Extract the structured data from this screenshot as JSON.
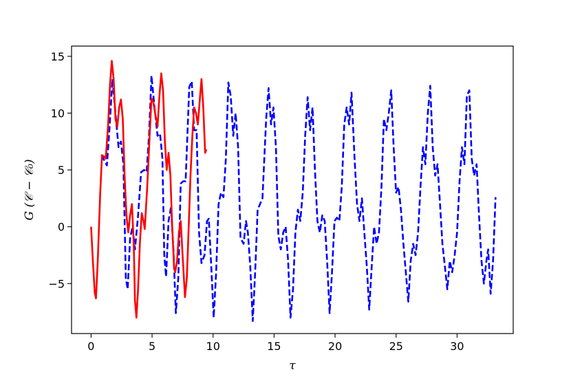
{
  "chart_data": {
    "type": "line",
    "title": "",
    "xlabel": "τ",
    "ylabel": "G (𝒞 − 𝒞₀)",
    "xlim": [
      -1.6,
      34.6
    ],
    "ylim": [
      -9.4,
      15.9
    ],
    "x_ticks": [
      0,
      5,
      10,
      15,
      20,
      25,
      30
    ],
    "x_tick_labels": [
      "0",
      "5",
      "10",
      "15",
      "20",
      "25",
      "30"
    ],
    "y_ticks": [
      -5,
      0,
      5,
      10,
      15
    ],
    "y_tick_labels": [
      "−5",
      "0",
      "5",
      "10",
      "15"
    ],
    "grid": false,
    "legend": "none",
    "series": [
      {
        "color": "#0000ff",
        "style": "dashed",
        "points": [
          [
            0.85,
            6.3
          ],
          [
            1.1,
            5.8
          ],
          [
            1.3,
            5.4
          ],
          [
            1.5,
            8.5
          ],
          [
            1.75,
            13.0
          ],
          [
            2.0,
            10.0
          ],
          [
            2.25,
            7.0
          ],
          [
            2.45,
            7.5
          ],
          [
            2.65,
            5.5
          ],
          [
            2.85,
            -4.5
          ],
          [
            3.0,
            -5.5
          ],
          [
            3.2,
            -1.0
          ],
          [
            3.4,
            0.0
          ],
          [
            3.6,
            -2.0
          ],
          [
            3.85,
            1.0
          ],
          [
            4.1,
            4.8
          ],
          [
            4.35,
            5.0
          ],
          [
            4.55,
            4.8
          ],
          [
            4.75,
            8.0
          ],
          [
            4.95,
            13.3
          ],
          [
            5.2,
            10.5
          ],
          [
            5.45,
            8.0
          ],
          [
            5.65,
            8.2
          ],
          [
            5.85,
            6.0
          ],
          [
            6.0,
            -2.5
          ],
          [
            6.15,
            -4.4
          ],
          [
            6.35,
            0.5
          ],
          [
            6.55,
            1.7
          ],
          [
            6.75,
            -2.0
          ],
          [
            6.95,
            -7.6
          ],
          [
            7.15,
            -4.5
          ],
          [
            7.35,
            3.8
          ],
          [
            7.55,
            4.0
          ],
          [
            7.75,
            4.0
          ],
          [
            8.05,
            12.3
          ],
          [
            8.25,
            12.8
          ],
          [
            8.45,
            8.5
          ],
          [
            8.65,
            8.5
          ],
          [
            8.85,
            -0.5
          ],
          [
            9.05,
            -3.2
          ],
          [
            9.3,
            -2.5
          ],
          [
            9.5,
            0.5
          ],
          [
            9.65,
            0.7
          ],
          [
            9.85,
            -3.5
          ],
          [
            10.05,
            -8.0
          ],
          [
            10.25,
            -4.0
          ],
          [
            10.45,
            2.0
          ],
          [
            10.65,
            3.0
          ],
          [
            10.85,
            2.6
          ],
          [
            11.05,
            6.0
          ],
          [
            11.25,
            12.7
          ],
          [
            11.45,
            11.5
          ],
          [
            11.65,
            8.0
          ],
          [
            11.85,
            10.0
          ],
          [
            12.05,
            7.0
          ],
          [
            12.25,
            -1.0
          ],
          [
            12.5,
            -1.5
          ],
          [
            12.7,
            0.5
          ],
          [
            12.85,
            -0.5
          ],
          [
            13.05,
            -3.5
          ],
          [
            13.25,
            -8.3
          ],
          [
            13.45,
            -4.0
          ],
          [
            13.65,
            1.5
          ],
          [
            13.85,
            2.0
          ],
          [
            14.05,
            2.5
          ],
          [
            14.35,
            9.5
          ],
          [
            14.55,
            12.2
          ],
          [
            14.75,
            9.0
          ],
          [
            14.95,
            10.5
          ],
          [
            15.15,
            7.0
          ],
          [
            15.35,
            -0.8
          ],
          [
            15.55,
            -2.0
          ],
          [
            15.75,
            -0.5
          ],
          [
            15.95,
            0.0
          ],
          [
            16.15,
            -3.0
          ],
          [
            16.35,
            -8.0
          ],
          [
            16.55,
            -5.5
          ],
          [
            16.75,
            -0.5
          ],
          [
            16.95,
            1.5
          ],
          [
            17.15,
            0.5
          ],
          [
            17.35,
            3.0
          ],
          [
            17.55,
            8.0
          ],
          [
            17.75,
            11.4
          ],
          [
            17.95,
            8.5
          ],
          [
            18.15,
            10.5
          ],
          [
            18.35,
            5.0
          ],
          [
            18.55,
            0.5
          ],
          [
            18.75,
            -0.5
          ],
          [
            18.95,
            1.0
          ],
          [
            19.15,
            0.5
          ],
          [
            19.35,
            -3.0
          ],
          [
            19.55,
            -7.6
          ],
          [
            19.75,
            -4.0
          ],
          [
            19.95,
            0.5
          ],
          [
            20.15,
            0.8
          ],
          [
            20.35,
            0.5
          ],
          [
            20.55,
            3.5
          ],
          [
            20.75,
            9.0
          ],
          [
            20.95,
            10.5
          ],
          [
            21.15,
            9.0
          ],
          [
            21.35,
            11.8
          ],
          [
            21.6,
            6.0
          ],
          [
            21.8,
            2.0
          ],
          [
            22.0,
            0.5
          ],
          [
            22.2,
            2.5
          ],
          [
            22.4,
            -0.5
          ],
          [
            22.6,
            -3.5
          ],
          [
            22.8,
            -7.3
          ],
          [
            23.0,
            -3.5
          ],
          [
            23.2,
            0.0
          ],
          [
            23.4,
            -1.5
          ],
          [
            23.6,
            -0.5
          ],
          [
            23.8,
            3.5
          ],
          [
            24.0,
            9.5
          ],
          [
            24.2,
            8.5
          ],
          [
            24.4,
            10.0
          ],
          [
            24.6,
            12.0
          ],
          [
            24.8,
            7.0
          ],
          [
            25.0,
            3.0
          ],
          [
            25.2,
            3.5
          ],
          [
            25.4,
            1.5
          ],
          [
            25.6,
            -1.5
          ],
          [
            25.8,
            -4.0
          ],
          [
            26.0,
            -6.6
          ],
          [
            26.2,
            -3.0
          ],
          [
            26.4,
            -1.5
          ],
          [
            26.6,
            -2.5
          ],
          [
            26.8,
            -0.5
          ],
          [
            27.0,
            3.5
          ],
          [
            27.2,
            7.0
          ],
          [
            27.4,
            5.5
          ],
          [
            27.6,
            10.0
          ],
          [
            27.8,
            12.4
          ],
          [
            28.0,
            7.0
          ],
          [
            28.2,
            4.5
          ],
          [
            28.4,
            5.5
          ],
          [
            28.6,
            2.0
          ],
          [
            28.8,
            -1.5
          ],
          [
            29.0,
            -3.5
          ],
          [
            29.2,
            -5.5
          ],
          [
            29.4,
            -3.0
          ],
          [
            29.6,
            -4.0
          ],
          [
            29.8,
            -2.5
          ],
          [
            30.0,
            -0.5
          ],
          [
            30.2,
            4.0
          ],
          [
            30.4,
            7.0
          ],
          [
            30.6,
            5.5
          ],
          [
            30.8,
            11.5
          ],
          [
            31.0,
            12.0
          ],
          [
            31.2,
            6.0
          ],
          [
            31.4,
            4.5
          ],
          [
            31.6,
            5.5
          ],
          [
            31.8,
            1.0
          ],
          [
            32.0,
            -3.0
          ],
          [
            32.2,
            -5.0
          ],
          [
            32.4,
            -3.0
          ],
          [
            32.55,
            -2.0
          ],
          [
            32.75,
            -5.9
          ],
          [
            32.95,
            -3.0
          ],
          [
            33.15,
            2.6
          ]
        ]
      },
      {
        "color": "#ff0000",
        "style": "solid",
        "points": [
          [
            0.0,
            0.0
          ],
          [
            0.15,
            -3.0
          ],
          [
            0.3,
            -5.8
          ],
          [
            0.4,
            -6.3
          ],
          [
            0.55,
            -3.0
          ],
          [
            0.75,
            3.0
          ],
          [
            0.9,
            6.3
          ],
          [
            1.05,
            6.2
          ],
          [
            1.2,
            6.0
          ],
          [
            1.4,
            9.0
          ],
          [
            1.55,
            12.5
          ],
          [
            1.7,
            14.6
          ],
          [
            1.85,
            13.0
          ],
          [
            2.0,
            9.5
          ],
          [
            2.15,
            8.8
          ],
          [
            2.3,
            10.5
          ],
          [
            2.45,
            11.2
          ],
          [
            2.6,
            9.5
          ],
          [
            2.75,
            4.5
          ],
          [
            2.9,
            1.0
          ],
          [
            3.05,
            -0.5
          ],
          [
            3.2,
            1.0
          ],
          [
            3.35,
            2.0
          ],
          [
            3.5,
            -1.5
          ],
          [
            3.6,
            -6.5
          ],
          [
            3.72,
            -8.0
          ],
          [
            3.85,
            -5.5
          ],
          [
            4.0,
            -1.5
          ],
          [
            4.15,
            1.2
          ],
          [
            4.3,
            0.5
          ],
          [
            4.4,
            -0.2
          ],
          [
            4.6,
            3.5
          ],
          [
            4.8,
            8.0
          ],
          [
            4.95,
            11.3
          ],
          [
            5.1,
            11.0
          ],
          [
            5.25,
            10.0
          ],
          [
            5.45,
            8.8
          ],
          [
            5.6,
            11.5
          ],
          [
            5.75,
            13.5
          ],
          [
            5.9,
            12.0
          ],
          [
            6.05,
            7.5
          ],
          [
            6.2,
            5.0
          ],
          [
            6.35,
            6.5
          ],
          [
            6.5,
            4.5
          ],
          [
            6.65,
            0.0
          ],
          [
            6.8,
            -3.5
          ],
          [
            6.9,
            -4.0
          ],
          [
            7.05,
            -3.0
          ],
          [
            7.2,
            -0.5
          ],
          [
            7.35,
            0.5
          ],
          [
            7.5,
            -2.5
          ],
          [
            7.7,
            -6.2
          ],
          [
            7.85,
            -4.5
          ],
          [
            8.0,
            0.0
          ],
          [
            8.15,
            4.5
          ],
          [
            8.3,
            8.0
          ],
          [
            8.45,
            10.5
          ],
          [
            8.6,
            10.0
          ],
          [
            8.75,
            9.0
          ],
          [
            8.9,
            11.0
          ],
          [
            9.05,
            13.0
          ],
          [
            9.2,
            10.5
          ],
          [
            9.35,
            6.5
          ],
          [
            9.45,
            6.8
          ]
        ]
      }
    ]
  }
}
